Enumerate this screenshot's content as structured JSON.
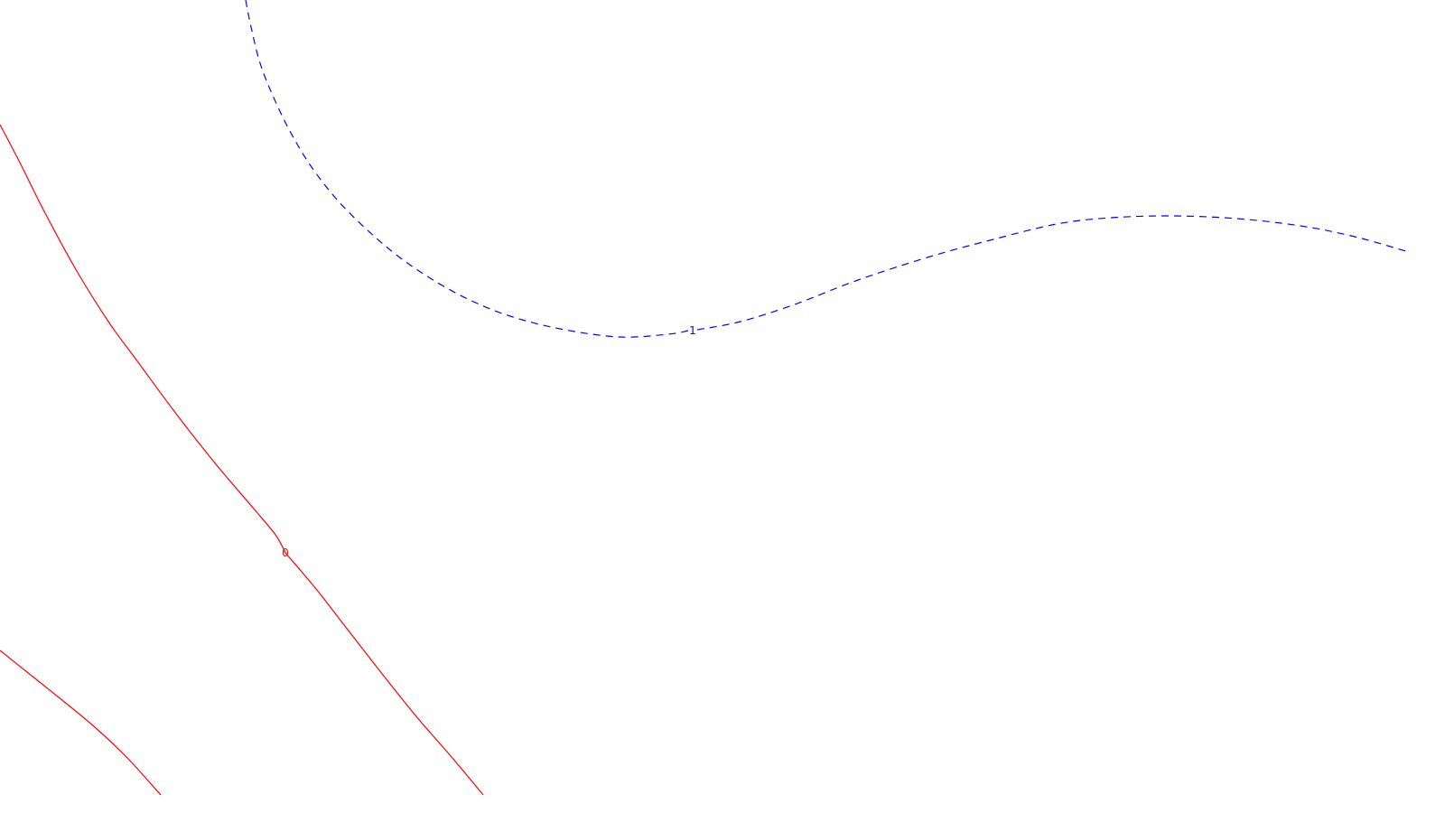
{
  "chart_data": {
    "type": "contour",
    "grid": false,
    "legend": "none",
    "contours": [
      {
        "label": "0",
        "color": "#ff0000",
        "style": "solid",
        "segments": [
          [
            [
              0,
              138
            ],
            [
              22,
              180
            ],
            [
              50,
              236
            ],
            [
              85,
              300
            ],
            [
              120,
              356
            ],
            [
              150,
              397
            ],
            [
              195,
              458
            ],
            [
              240,
              515
            ],
            [
              280,
              562
            ],
            [
              305,
              592
            ],
            [
              316,
              612
            ]
          ],
          [
            [
              316,
              612
            ],
            [
              350,
              652
            ],
            [
              385,
              697
            ],
            [
              420,
              742
            ],
            [
              460,
              792
            ],
            [
              500,
              838
            ],
            [
              535,
              880
            ]
          ]
        ],
        "label_pos": [
          316,
          612
        ]
      },
      {
        "label": "",
        "color": "#ff0000",
        "style": "solid",
        "segments": [
          [
            [
              0,
              720
            ],
            [
              35,
              748
            ],
            [
              70,
              776
            ],
            [
              105,
              805
            ],
            [
              140,
              838
            ],
            [
              178,
              880
            ]
          ]
        ]
      },
      {
        "label": "1",
        "color": "#0000ff",
        "style": "dashed",
        "segments": [
          [
            [
              272,
              0
            ],
            [
              278,
              30
            ],
            [
              288,
              70
            ],
            [
              303,
              108
            ],
            [
              322,
              147
            ],
            [
              345,
              185
            ],
            [
              374,
              222
            ],
            [
              406,
              254
            ],
            [
              440,
              283
            ],
            [
              478,
              309
            ],
            [
              520,
              332
            ],
            [
              565,
              350
            ],
            [
              620,
              364
            ],
            [
              685,
              373
            ],
            [
              740,
              370
            ],
            [
              762,
              366
            ]
          ],
          [
            [
              772,
              365
            ],
            [
              820,
              356
            ],
            [
              880,
              337
            ],
            [
              950,
              310
            ],
            [
              1030,
              284
            ],
            [
              1100,
              265
            ],
            [
              1170,
              248
            ],
            [
              1230,
              241
            ],
            [
              1300,
              239
            ],
            [
              1370,
              242
            ],
            [
              1440,
              250
            ],
            [
              1500,
              262
            ],
            [
              1560,
              279
            ]
          ]
        ],
        "label_pos": [
          767,
          366
        ]
      }
    ]
  }
}
